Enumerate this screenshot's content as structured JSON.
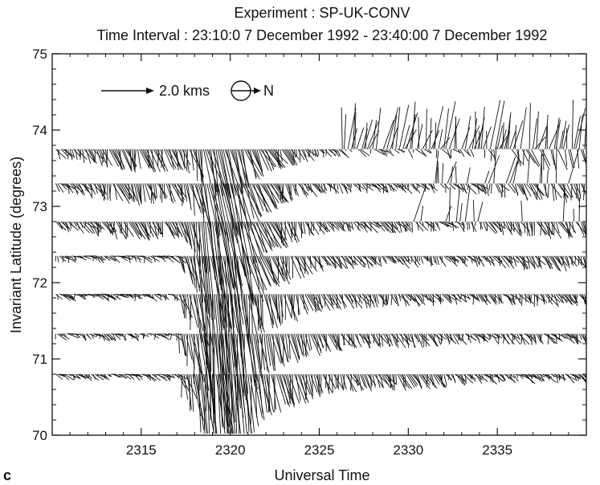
{
  "chart_data": {
    "type": "vector-field",
    "title": "Experiment : SP-UK-CONV",
    "subtitle": "Time Interval : 23:10:0 7 December 1992 - 23:40:00 7 December 1992",
    "xlabel": "Universal Time",
    "ylabel": "Invariant Latitude (degrees)",
    "panel_label": "c",
    "xlim": [
      2310.0,
      2340.0
    ],
    "ylim": [
      70,
      75
    ],
    "x_ticks": [
      {
        "value": 2315,
        "label": "2315"
      },
      {
        "value": 2320,
        "label": "2320"
      },
      {
        "value": 2325,
        "label": "2325"
      },
      {
        "value": 2330,
        "label": "2330"
      },
      {
        "value": 2335,
        "label": "2335"
      }
    ],
    "y_ticks": [
      {
        "value": 70,
        "label": "70"
      },
      {
        "value": 71,
        "label": "71"
      },
      {
        "value": 72,
        "label": "72"
      },
      {
        "value": 73,
        "label": "73"
      },
      {
        "value": 74,
        "label": "74"
      },
      {
        "value": 75,
        "label": "75"
      }
    ],
    "legend": {
      "scale_label": "2.0 kms",
      "scale_speed_kms": 2.0,
      "direction_label": "N"
    },
    "latitudes": [
      70.8,
      71.33,
      71.85,
      72.35,
      72.8,
      73.3,
      73.75
    ],
    "time_range": [
      2310.2,
      2340.0
    ],
    "vector_step_min": 0.1,
    "velocity_scale_deg_per_kms": 0.19,
    "color": "#111111"
  }
}
